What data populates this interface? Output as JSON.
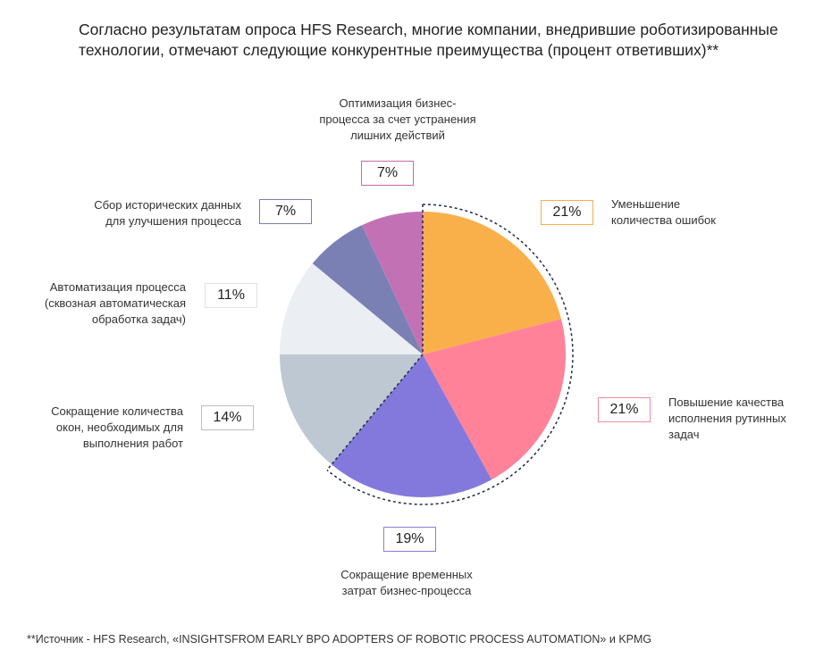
{
  "title": "Согласно результатам опроса HFS Research, многие компании, внедрившие роботизированные технологии, отмечают следующие конкурентные преимущества (процент ответивших)**",
  "chart_data": {
    "type": "pie",
    "title": "Согласно результатам опроса HFS Research, многие компании, внедрившие роботизированные технологии, отмечают следующие конкурентные преимущества (процент ответивших)**",
    "slices": [
      {
        "label": "Уменьшение количества ошибок",
        "value": 21,
        "value_label": "21%",
        "color": "#f9b04b",
        "border": "#f2b04a"
      },
      {
        "label": "Повышение качества исполнения рутинных задач",
        "value": 21,
        "value_label": "21%",
        "color": "#ff8299",
        "border": "#f08aa0"
      },
      {
        "label": "Сокращение временных затрат бизнес-процесса",
        "value": 19,
        "value_label": "19%",
        "color": "#8378dc",
        "border": "#8a80d8"
      },
      {
        "label": "Сокращение количества окон, необходимых для выполнения работ",
        "value": 14,
        "value_label": "14%",
        "color": "#bec8d3",
        "border": "#bdbdbd"
      },
      {
        "label": "Автоматизация процесса (сквозная автоматическая обработка задач)",
        "value": 11,
        "value_label": "11%",
        "color": "#ebeef2",
        "border": "#e0e0e0"
      },
      {
        "label": "Сбор исторических данных для улучшения процесса",
        "value": 7,
        "value_label": "7%",
        "color": "#7a7fb4",
        "border": "#7a7fb0"
      },
      {
        "label": "Оптимизация бизнес-процесса за счет устранения лишних действий",
        "value": 7,
        "value_label": "7%",
        "color": "#c272b4",
        "border": "#c46cab"
      }
    ],
    "highlight_note": "dashed outline around first three slices"
  },
  "labels": {
    "s0": "Уменьшение\nколичества ошибок",
    "s1": "Повышение качества\nисполнения рутинных\nзадач",
    "s2": "Сокращение временных\nзатрат бизнес-процесса",
    "s3": "Сокращение количества\nокон, необходимых для\nвыполнения работ",
    "s4": "Автоматизация процесса\n(сквозная автоматическая\nобработка задач)",
    "s5": "Сбор исторических данных\nдля улучшения процесса",
    "s6": "Оптимизация бизнес-\nпроцесса за счет устранения\nлишних действий"
  },
  "source": "**Источник - HFS Research, «INSIGHTSFROM EARLY BPO ADOPTERS OF ROBOTIC PROCESS AUTOMATION» и KPMG"
}
